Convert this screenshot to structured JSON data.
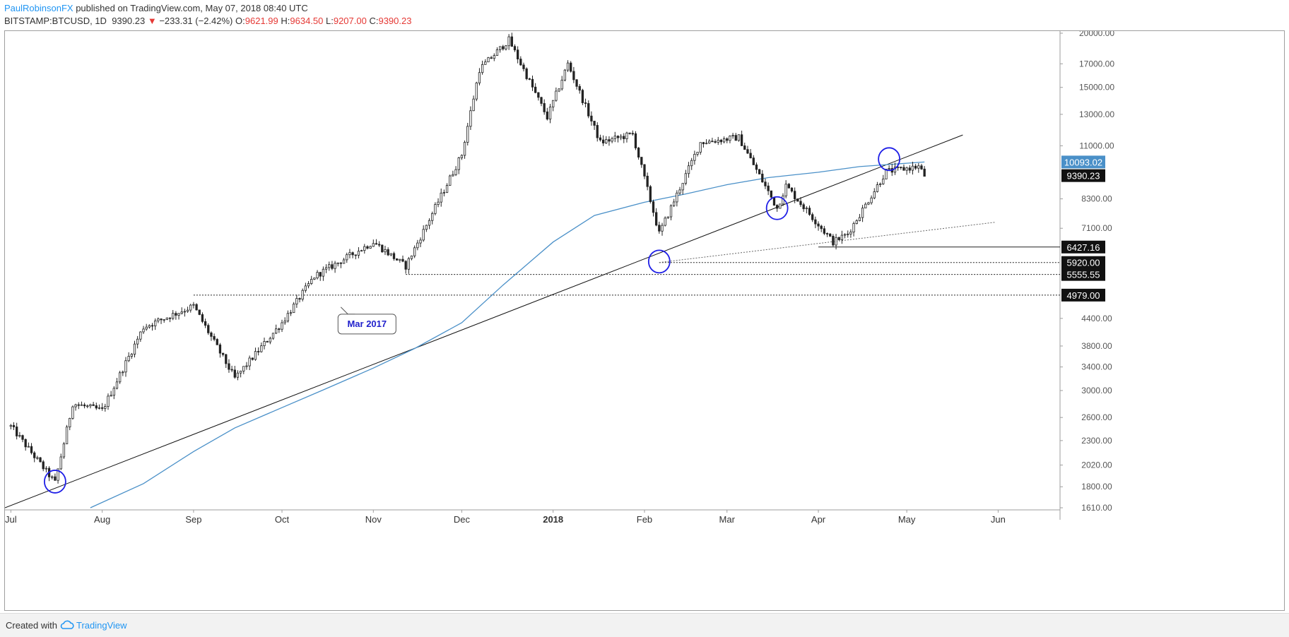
{
  "header": {
    "author": "PaulRobinsonFX",
    "published": "published on TradingView.com, May 07, 2018 08:40 UTC",
    "symbol": "BITSTAMP:BTCUSD, 1D",
    "last": "9390.23",
    "change_arrow": "▼",
    "change": "−233.31 (−2.42%)",
    "o_label": "O:",
    "o_value": "9621.99",
    "h_label": "H:",
    "h_value": "9634.50",
    "l_label": "L:",
    "l_value": "9207.00",
    "c_label": "C:",
    "c_value": "9390.23"
  },
  "footer": {
    "created_with": "Created with",
    "brand": "TradingView",
    "logo_icon": "tradingview-cloud-icon"
  },
  "chart_data": {
    "type": "candlestick",
    "x_axis": {
      "type": "date",
      "range": [
        "2017-06-29",
        "2018-06-22"
      ],
      "tick_labels": [
        {
          "label": "Jul",
          "date": "2017-07-01"
        },
        {
          "label": "Aug",
          "date": "2017-08-01"
        },
        {
          "label": "Sep",
          "date": "2017-09-01"
        },
        {
          "label": "Oct",
          "date": "2017-10-01"
        },
        {
          "label": "Nov",
          "date": "2017-11-01"
        },
        {
          "label": "Dec",
          "date": "2017-12-01"
        },
        {
          "label": "2018",
          "date": "2018-01-01",
          "bold": true
        },
        {
          "label": "Feb",
          "date": "2018-02-01"
        },
        {
          "label": "Mar",
          "date": "2018-03-01"
        },
        {
          "label": "Apr",
          "date": "2018-04-01"
        },
        {
          "label": "May",
          "date": "2018-05-01"
        },
        {
          "label": "Jun",
          "date": "2018-06-01"
        }
      ]
    },
    "y_axis": {
      "scale": "log",
      "range": [
        1610,
        20000
      ],
      "tick_labels": [
        "20000.00",
        "17000.00",
        "15000.00",
        "13000.00",
        "11000.00",
        "8300.00",
        "7100.00",
        "4400.00",
        "3800.00",
        "3400.00",
        "3000.00",
        "2600.00",
        "2300.00",
        "2020.00",
        "1800.00",
        "1610.00"
      ]
    },
    "price_labels": [
      {
        "value": 10093.02,
        "text": "10093.02",
        "style": "ma"
      },
      {
        "value": 9390.23,
        "text": "9390.23",
        "style": "dark"
      },
      {
        "value": 6427.16,
        "text": "6427.16",
        "style": "dark"
      },
      {
        "value": 5920.0,
        "text": "5920.00",
        "style": "dark"
      },
      {
        "value": 5555.55,
        "text": "5555.55",
        "style": "dark"
      },
      {
        "value": 4979.0,
        "text": "4979.00",
        "style": "dark"
      }
    ],
    "horizontal_levels": [
      {
        "value": 4979.0,
        "from": "2017-09-01",
        "style": "dotted"
      },
      {
        "value": 5555.55,
        "from": "2017-11-12",
        "style": "dotted"
      },
      {
        "value": 5920.0,
        "from": "2018-02-06",
        "style": "dotted"
      },
      {
        "value": 6427.16,
        "from": "2018-04-01",
        "style": "solid"
      }
    ],
    "trendlines": [
      {
        "name": "",
        "p1": {
          "date": "2017-06-29",
          "value": 1610
        },
        "p2": {
          "date": "2018-05-20",
          "value": 11650
        },
        "style": "solid"
      },
      {
        "name": "",
        "p1": {
          "date": "2018-02-06",
          "value": 5920
        },
        "p2": {
          "date": "2018-05-31",
          "value": 7330
        },
        "style": "dotted"
      }
    ],
    "moving_average": {
      "name": "",
      "color": "#4a90c8",
      "points": [
        {
          "date": "2017-07-28",
          "value": 1610
        },
        {
          "date": "2017-08-15",
          "value": 1830
        },
        {
          "date": "2017-09-01",
          "value": 2170
        },
        {
          "date": "2017-09-15",
          "value": 2460
        },
        {
          "date": "2017-10-01",
          "value": 2740
        },
        {
          "date": "2017-10-15",
          "value": 3010
        },
        {
          "date": "2017-11-01",
          "value": 3380
        },
        {
          "date": "2017-11-15",
          "value": 3750
        },
        {
          "date": "2017-12-01",
          "value": 4300
        },
        {
          "date": "2017-12-15",
          "value": 5250
        },
        {
          "date": "2018-01-01",
          "value": 6600
        },
        {
          "date": "2018-01-15",
          "value": 7600
        },
        {
          "date": "2018-02-01",
          "value": 8150
        },
        {
          "date": "2018-02-15",
          "value": 8520
        },
        {
          "date": "2018-03-01",
          "value": 8950
        },
        {
          "date": "2018-03-15",
          "value": 9290
        },
        {
          "date": "2018-04-01",
          "value": 9560
        },
        {
          "date": "2018-04-15",
          "value": 9850
        },
        {
          "date": "2018-05-01",
          "value": 10030
        },
        {
          "date": "2018-05-07",
          "value": 10093
        }
      ]
    },
    "ellipse_markers": [
      {
        "date": "2017-07-16",
        "value": 1850,
        "color": "#1e1ee6"
      },
      {
        "date": "2018-02-06",
        "value": 5950,
        "color": "#1e1ee6"
      },
      {
        "date": "2018-03-18",
        "value": 7900,
        "color": "#1e1ee6"
      },
      {
        "date": "2018-04-25",
        "value": 10250,
        "color": "#1e1ee6"
      }
    ],
    "callout": {
      "text": "Mar 2017",
      "anchor_date": "2017-11-01",
      "anchor_value": 4500
    },
    "candles_description": "Daily BTCUSD candles: black filled body = down day, white hollow body = up day",
    "key_prices": [
      {
        "date": "2017-07-01",
        "value": 2480
      },
      {
        "date": "2017-07-16",
        "value": 1840
      },
      {
        "date": "2017-07-22",
        "value": 2800
      },
      {
        "date": "2017-08-01",
        "value": 2700
      },
      {
        "date": "2017-08-15",
        "value": 4200
      },
      {
        "date": "2017-09-01",
        "value": 4700
      },
      {
        "date": "2017-09-15",
        "value": 3200
      },
      {
        "date": "2017-10-01",
        "value": 4300
      },
      {
        "date": "2017-10-12",
        "value": 5500
      },
      {
        "date": "2017-11-01",
        "value": 6600
      },
      {
        "date": "2017-11-12",
        "value": 5800
      },
      {
        "date": "2017-12-01",
        "value": 10500
      },
      {
        "date": "2017-12-07",
        "value": 16500
      },
      {
        "date": "2017-12-17",
        "value": 19300
      },
      {
        "date": "2017-12-30",
        "value": 12800
      },
      {
        "date": "2018-01-06",
        "value": 17000
      },
      {
        "date": "2018-01-17",
        "value": 11200
      },
      {
        "date": "2018-01-28",
        "value": 11700
      },
      {
        "date": "2018-02-06",
        "value": 6900
      },
      {
        "date": "2018-02-20",
        "value": 11200
      },
      {
        "date": "2018-03-05",
        "value": 11500
      },
      {
        "date": "2018-03-18",
        "value": 7900
      },
      {
        "date": "2018-03-21",
        "value": 8900
      },
      {
        "date": "2018-04-06",
        "value": 6600
      },
      {
        "date": "2018-04-11",
        "value": 6900
      },
      {
        "date": "2018-04-24",
        "value": 9600
      },
      {
        "date": "2018-05-05",
        "value": 9850
      },
      {
        "date": "2018-05-06",
        "value": 9621.99
      },
      {
        "date": "2018-05-07",
        "value": 9390.23
      }
    ]
  }
}
